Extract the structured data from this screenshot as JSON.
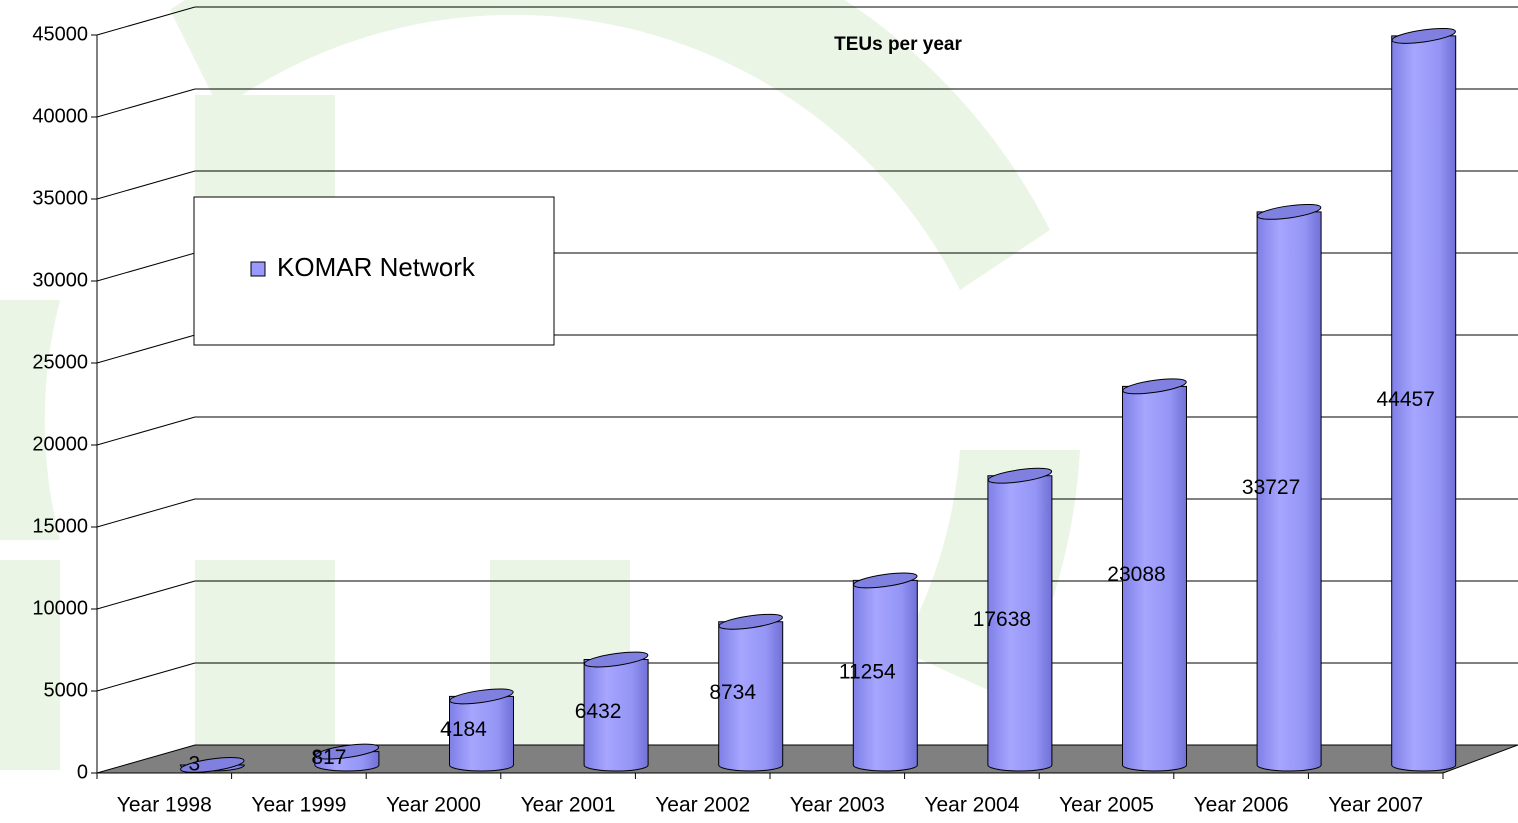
{
  "chart_data": {
    "type": "bar",
    "title": "TEUs per year",
    "categories": [
      "Year 1998",
      "Year 1999",
      "Year 2000",
      "Year 2001",
      "Year 2002",
      "Year 2003",
      "Year 2004",
      "Year 2005",
      "Year 2006",
      "Year 2007"
    ],
    "series": [
      {
        "name": "KOMAR Network",
        "color": "#9999ff",
        "values": [
          3,
          817,
          4184,
          6432,
          8734,
          11254,
          17638,
          23088,
          33727,
          44457
        ]
      }
    ],
    "ylim": [
      0,
      45000
    ],
    "yticks": [
      0,
      5000,
      10000,
      15000,
      20000,
      25000,
      30000,
      35000,
      40000,
      45000
    ],
    "grid": true,
    "legend": "upper-left"
  }
}
